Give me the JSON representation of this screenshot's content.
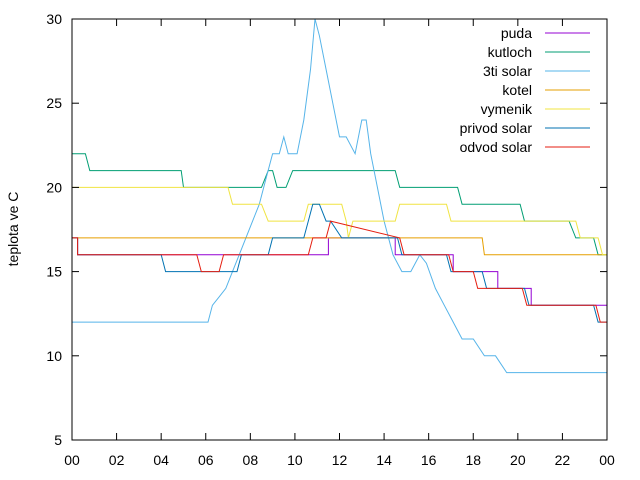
{
  "chart_data": {
    "type": "line",
    "title": "",
    "xlabel": "",
    "ylabel": "teplota ve C",
    "xlim": [
      0,
      24
    ],
    "ylim": [
      5,
      30
    ],
    "x_ticks": [
      "00",
      "02",
      "04",
      "06",
      "08",
      "10",
      "12",
      "14",
      "16",
      "18",
      "20",
      "22",
      "00"
    ],
    "y_ticks": [
      5,
      10,
      15,
      20,
      25,
      30
    ],
    "grid": false,
    "legend_position": "top-right",
    "series": [
      {
        "name": "puda",
        "color": "#9400d3",
        "x": [
          0,
          0.25,
          0.25,
          2.8,
          2.8,
          4.2,
          4.2,
          6.0,
          6.0,
          7.1,
          7.1,
          8.1,
          8.1,
          11.5,
          11.5,
          14.5,
          14.5,
          15.3,
          15.3,
          17.1,
          17.1,
          19.1,
          19.1,
          20.6,
          20.6,
          23.6,
          23.6,
          24
        ],
        "y": [
          17,
          17,
          16,
          16,
          16,
          16,
          16,
          16,
          16,
          16,
          16,
          16,
          16,
          16,
          17,
          17,
          16,
          16,
          16,
          16,
          15,
          15,
          14,
          14,
          13,
          13,
          13,
          13
        ]
      },
      {
        "name": "kutloch",
        "color": "#009e73",
        "x": [
          0,
          0.6,
          0.8,
          4.9,
          5.0,
          8.5,
          8.8,
          9.0,
          9.2,
          9.6,
          9.9,
          14.5,
          14.7,
          17.3,
          17.5,
          20.1,
          20.3,
          22.3,
          22.6,
          23.4,
          23.6,
          24
        ],
        "y": [
          22,
          22,
          21,
          21,
          20,
          20,
          21,
          21,
          20,
          20,
          21,
          21,
          20,
          20,
          19,
          19,
          18,
          18,
          17,
          17,
          16,
          16
        ]
      },
      {
        "name": "3ti solar",
        "color": "#56b4e9",
        "x": [
          0,
          6.1,
          6.3,
          6.6,
          6.9,
          7.2,
          7.5,
          7.8,
          8.1,
          8.4,
          8.7,
          9.0,
          9.3,
          9.5,
          9.7,
          10.1,
          10.4,
          10.7,
          10.9,
          11.1,
          11.4,
          11.7,
          12.0,
          12.3,
          12.7,
          13.0,
          13.2,
          13.4,
          13.7,
          14.0,
          14.4,
          14.8,
          15.2,
          15.6,
          15.9,
          16.3,
          16.7,
          17.1,
          17.5,
          18.0,
          18.5,
          19.0,
          19.5,
          20.0,
          21.0,
          22.0,
          23.0,
          24
        ],
        "y": [
          12,
          12,
          13,
          13.5,
          14,
          15,
          16,
          17,
          18,
          19,
          20.5,
          22,
          22,
          23,
          22,
          22,
          24,
          27,
          30,
          29,
          27,
          25,
          23,
          23,
          22,
          24,
          24,
          22,
          20,
          18,
          16,
          15,
          15,
          16,
          15.5,
          14,
          13,
          12,
          11,
          11,
          10,
          10,
          9,
          9,
          9,
          9,
          9,
          9
        ]
      },
      {
        "name": "kotel",
        "color": "#e69f00",
        "x": [
          0,
          18.4,
          18.5,
          24
        ],
        "y": [
          17,
          17,
          16,
          16
        ]
      },
      {
        "name": "vymenik",
        "color": "#f0e442",
        "x": [
          0,
          7.0,
          7.2,
          8.5,
          8.8,
          10.4,
          10.6,
          12.1,
          12.3,
          12.4,
          12.6,
          14.5,
          14.7,
          16.8,
          17.0,
          22.6,
          22.8,
          23.6,
          23.8,
          24
        ],
        "y": [
          20,
          20,
          19,
          19,
          18,
          18,
          19,
          19,
          18,
          17,
          18,
          18,
          19,
          19,
          18,
          18,
          17,
          17,
          16,
          16
        ]
      },
      {
        "name": "privod solar",
        "color": "#0072b2",
        "x": [
          0,
          0.25,
          0.25,
          4.0,
          4.2,
          5.5,
          5.7,
          7.4,
          7.6,
          8.8,
          9.0,
          10.4,
          10.6,
          10.8,
          11.1,
          11.4,
          11.6,
          12.1,
          12.3,
          14.6,
          14.8,
          15.3,
          15.5,
          16.8,
          17.0,
          18.4,
          18.6,
          20.3,
          20.5,
          23.4,
          23.6,
          24
        ],
        "y": [
          17,
          17,
          16,
          16,
          15,
          15,
          15,
          15,
          16,
          16,
          17,
          17,
          18,
          19,
          19,
          18,
          18,
          17,
          17,
          17,
          16,
          16,
          16,
          16,
          15,
          15,
          14,
          14,
          13,
          13,
          12,
          12
        ]
      },
      {
        "name": "odvod solar",
        "color": "#e51e10",
        "x": [
          0,
          0.25,
          0.25,
          5.6,
          5.8,
          6.6,
          6.8,
          10.6,
          10.8,
          11.4,
          11.6,
          14.7,
          14.9,
          16.9,
          17.1,
          18.0,
          18.2,
          20.2,
          20.4,
          23.5,
          23.7,
          24
        ],
        "y": [
          17,
          17,
          16,
          16,
          15,
          15,
          16,
          16,
          17,
          17,
          18,
          17,
          16,
          16,
          15,
          15,
          14,
          14,
          13,
          13,
          12,
          12
        ]
      }
    ]
  }
}
